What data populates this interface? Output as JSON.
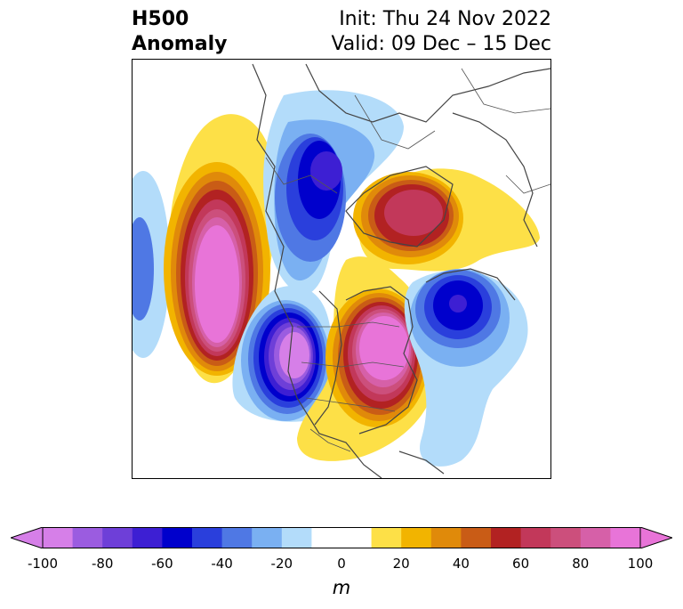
{
  "header": {
    "title_line1": "H500",
    "title_line2": "Anomaly",
    "init_label": "Init: Thu 24 Nov 2022",
    "valid_label": "Valid: 09 Dec – 15 Dec"
  },
  "colorbar": {
    "unit": "m",
    "min": -100,
    "max": 100,
    "ticks": [
      "-100",
      "-80",
      "-60",
      "-40",
      "-20",
      "0",
      "20",
      "40",
      "60",
      "80",
      "100"
    ],
    "tick_values": [
      -100,
      -80,
      -60,
      -40,
      -20,
      0,
      20,
      40,
      60,
      80,
      100
    ],
    "colors": [
      "#d67fe8",
      "#9b5ce0",
      "#6e3fd8",
      "#3d1fd3",
      "#0000cc",
      "#2a3fdc",
      "#4f78e4",
      "#7ab0f2",
      "#b3dcfa",
      "#ffffff",
      "#ffffff",
      "#fde047",
      "#f2b400",
      "#e08a0a",
      "#c95c16",
      "#b22222",
      "#c2385a",
      "#cc4f7c",
      "#d660a8",
      "#e874d8"
    ],
    "under_color": "#d67fe8",
    "over_color": "#e874d8"
  },
  "anomalies": [
    {
      "name": "negative-anomaly-north-pacific",
      "sign": "negative",
      "peak_m": -50
    },
    {
      "name": "positive-anomaly-bering-alaska",
      "sign": "positive",
      "peak_m": 100
    },
    {
      "name": "negative-anomaly-siberia-arctic",
      "sign": "negative",
      "peak_m": -70
    },
    {
      "name": "positive-anomaly-greenland",
      "sign": "positive",
      "peak_m": 70
    },
    {
      "name": "negative-anomaly-western-north-america",
      "sign": "negative",
      "peak_m": -100
    },
    {
      "name": "positive-anomaly-eastern-canada",
      "sign": "positive",
      "peak_m": 100
    },
    {
      "name": "negative-anomaly-north-atlantic",
      "sign": "negative",
      "peak_m": -60
    }
  ]
}
